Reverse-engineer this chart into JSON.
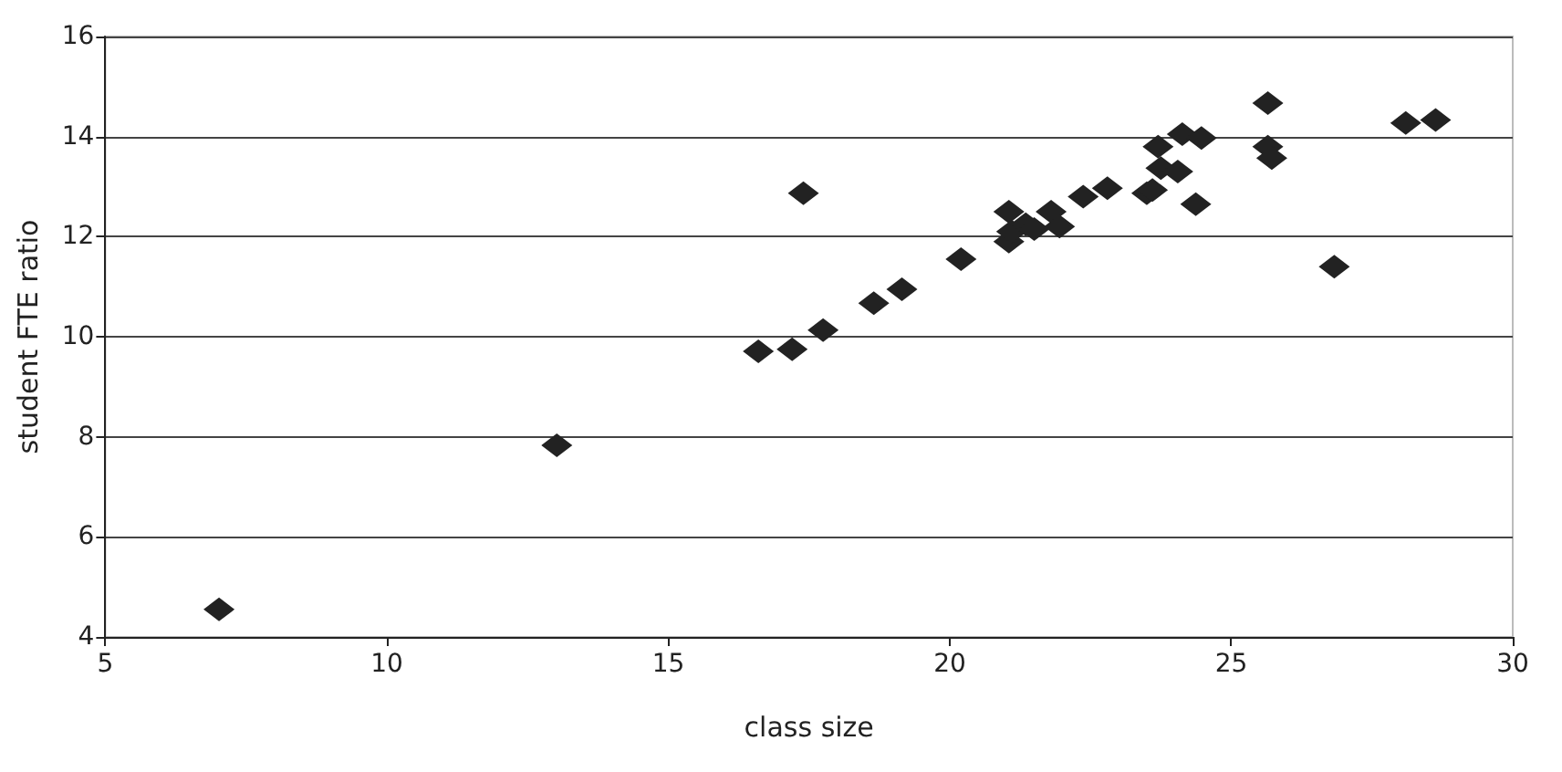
{
  "chart_data": {
    "type": "scatter",
    "xlabel": "class size",
    "ylabel": "student FTE ratio",
    "x": [
      7.02,
      13.02,
      16.6,
      17.2,
      17.75,
      17.4,
      18.65,
      19.15,
      20.2,
      21.05,
      21.05,
      21.1,
      21.35,
      21.5,
      21.8,
      21.95,
      22.37,
      22.8,
      23.5,
      23.6,
      23.7,
      23.75,
      24.05,
      24.13,
      24.47,
      24.37,
      25.65,
      25.65,
      25.72,
      26.83,
      28.1,
      28.63
    ],
    "values": [
      4.55,
      7.83,
      9.71,
      9.75,
      10.13,
      12.87,
      10.67,
      10.95,
      11.55,
      12.5,
      11.9,
      12.1,
      12.25,
      12.15,
      12.5,
      12.2,
      12.8,
      12.97,
      12.87,
      12.93,
      13.8,
      13.37,
      13.3,
      14.05,
      13.97,
      12.65,
      14.67,
      13.8,
      13.57,
      11.4,
      14.27,
      14.33
    ],
    "color": "#222222",
    "marker": "diamond",
    "grid": "y",
    "xlim": [
      5,
      30
    ],
    "xticks": [
      5,
      10,
      15,
      20,
      25,
      30
    ],
    "ylim": [
      4,
      16
    ],
    "yticks": [
      4,
      6,
      8,
      10,
      12,
      14,
      16
    ]
  }
}
